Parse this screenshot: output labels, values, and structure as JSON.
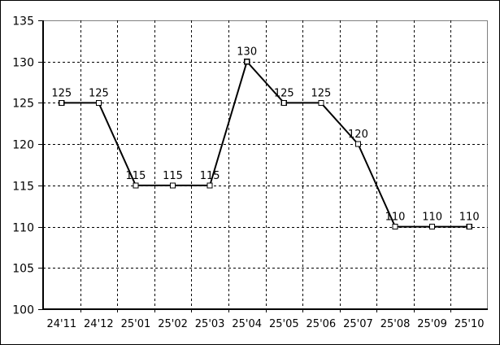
{
  "chart_data": {
    "type": "line",
    "title": "",
    "xlabel": "",
    "ylabel": "",
    "categories": [
      "24'11",
      "24'12",
      "25'01",
      "25'02",
      "25'03",
      "25'04",
      "25'05",
      "25'06",
      "25'07",
      "25'08",
      "25'09",
      "25'10"
    ],
    "series": [
      {
        "name": "value",
        "values": [
          125,
          125,
          115,
          115,
          115,
          130,
          125,
          125,
          120,
          110,
          110,
          110
        ],
        "point_labels": [
          "125",
          "125",
          "115",
          "115",
          "115",
          "130",
          "125",
          "125",
          "120",
          "110",
          "110",
          "110"
        ]
      }
    ],
    "ylim": [
      100,
      135
    ],
    "yticks": [
      100,
      105,
      110,
      115,
      120,
      125,
      130,
      135
    ],
    "grid": "dashed-both",
    "legend": "none",
    "marker": "open-square",
    "colors": {
      "background": "#ffffff",
      "outer_border": "#000000",
      "plot_border": "#808080",
      "axis": "#000000",
      "grid": "#000000",
      "line": "#000000",
      "marker_fill": "#ffffff",
      "marker_stroke": "#000000",
      "text": "#000000"
    }
  }
}
